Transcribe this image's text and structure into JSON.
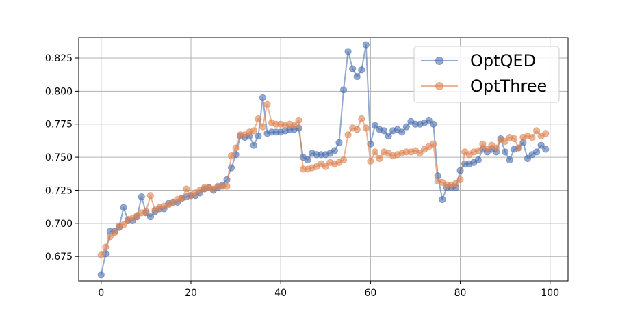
{
  "chart_data": {
    "type": "line",
    "x": [
      0,
      1,
      2,
      3,
      4,
      5,
      6,
      7,
      8,
      9,
      10,
      11,
      12,
      13,
      14,
      15,
      16,
      17,
      18,
      19,
      20,
      21,
      22,
      23,
      24,
      25,
      26,
      27,
      28,
      29,
      30,
      31,
      32,
      33,
      34,
      35,
      36,
      37,
      38,
      39,
      40,
      41,
      42,
      43,
      44,
      45,
      46,
      47,
      48,
      49,
      50,
      51,
      52,
      53,
      54,
      55,
      56,
      57,
      58,
      59,
      60,
      61,
      62,
      63,
      64,
      65,
      66,
      67,
      68,
      69,
      70,
      71,
      72,
      73,
      74,
      75,
      76,
      77,
      78,
      79,
      80,
      81,
      82,
      83,
      84,
      85,
      86,
      87,
      88,
      89,
      90,
      91,
      92,
      93,
      94,
      95,
      96,
      97,
      98,
      99
    ],
    "series": [
      {
        "name": "OptQED",
        "color": "#4c72b0",
        "values": [
          0.661,
          0.677,
          0.694,
          0.694,
          0.697,
          0.712,
          0.702,
          0.702,
          0.705,
          0.72,
          0.708,
          0.705,
          0.709,
          0.711,
          0.711,
          0.715,
          0.716,
          0.716,
          0.719,
          0.72,
          0.721,
          0.721,
          0.723,
          0.726,
          0.727,
          0.725,
          0.727,
          0.729,
          0.733,
          0.742,
          0.752,
          0.766,
          0.765,
          0.766,
          0.759,
          0.766,
          0.795,
          0.768,
          0.769,
          0.769,
          0.769,
          0.77,
          0.771,
          0.771,
          0.772,
          0.75,
          0.748,
          0.753,
          0.752,
          0.752,
          0.752,
          0.753,
          0.755,
          0.761,
          0.801,
          0.83,
          0.817,
          0.811,
          0.816,
          0.835,
          0.76,
          0.774,
          0.771,
          0.77,
          0.766,
          0.77,
          0.771,
          0.769,
          0.773,
          0.777,
          0.775,
          0.775,
          0.776,
          0.778,
          0.775,
          0.736,
          0.718,
          0.727,
          0.727,
          0.727,
          0.74,
          0.745,
          0.745,
          0.746,
          0.748,
          0.756,
          0.754,
          0.756,
          0.754,
          0.764,
          0.754,
          0.748,
          0.756,
          0.757,
          0.761,
          0.749,
          0.752,
          0.754,
          0.759,
          0.756
        ]
      },
      {
        "name": "OptThree",
        "color": "#dd8452",
        "values": [
          0.676,
          0.682,
          0.69,
          0.693,
          0.698,
          0.699,
          0.703,
          0.704,
          0.706,
          0.708,
          0.709,
          0.721,
          0.71,
          0.712,
          0.713,
          0.714,
          0.716,
          0.718,
          0.719,
          0.726,
          0.721,
          0.723,
          0.725,
          0.727,
          0.727,
          0.726,
          0.728,
          0.728,
          0.728,
          0.751,
          0.757,
          0.767,
          0.767,
          0.769,
          0.77,
          0.779,
          0.773,
          0.79,
          0.776,
          0.775,
          0.775,
          0.774,
          0.775,
          0.774,
          0.778,
          0.741,
          0.741,
          0.742,
          0.743,
          0.745,
          0.743,
          0.746,
          0.745,
          0.746,
          0.748,
          0.767,
          0.772,
          0.771,
          0.779,
          0.772,
          0.747,
          0.754,
          0.749,
          0.754,
          0.753,
          0.751,
          0.752,
          0.753,
          0.754,
          0.754,
          0.755,
          0.753,
          0.756,
          0.758,
          0.76,
          0.732,
          0.731,
          0.729,
          0.729,
          0.73,
          0.733,
          0.754,
          0.752,
          0.754,
          0.755,
          0.76,
          0.756,
          0.759,
          0.757,
          0.763,
          0.762,
          0.765,
          0.764,
          0.757,
          0.765,
          0.766,
          0.765,
          0.77,
          0.766,
          0.768
        ]
      }
    ],
    "title": "",
    "xlabel": "",
    "ylabel": "",
    "xlim": [
      -5,
      104
    ],
    "ylim": [
      0.6565,
      0.8405
    ],
    "xticks": [
      0,
      20,
      40,
      60,
      80,
      100
    ],
    "xtick_labels": [
      "0",
      "20",
      "40",
      "60",
      "80",
      "100"
    ],
    "yticks": [
      0.675,
      0.7,
      0.725,
      0.75,
      0.775,
      0.8,
      0.825
    ],
    "ytick_labels": [
      "0.675",
      "0.700",
      "0.725",
      "0.750",
      "0.775",
      "0.800",
      "0.825"
    ],
    "grid": true,
    "legend_position": "top-right"
  }
}
